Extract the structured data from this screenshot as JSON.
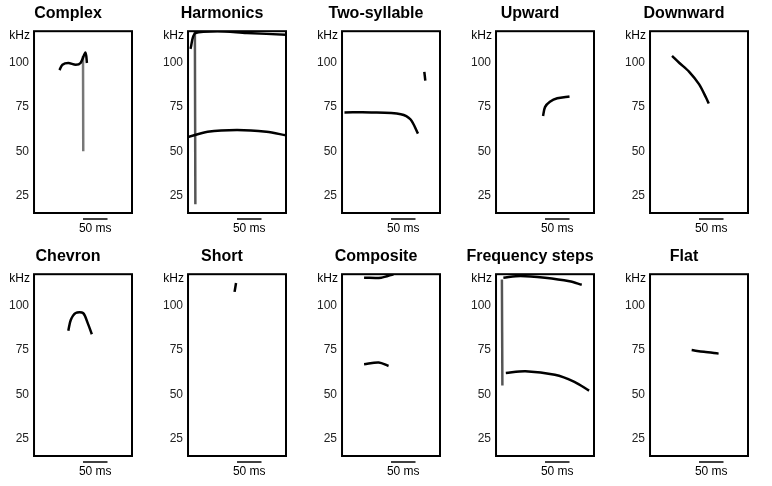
{
  "chart_data": [
    {
      "type": "line",
      "title": "Complex",
      "ylabel": "kHz",
      "ylim": [
        15,
        118
      ],
      "yticks": [
        25,
        50,
        75,
        100
      ],
      "xlim": [
        0,
        200
      ],
      "tick_labels": "y",
      "grid": false,
      "scale_bar": {
        "value": 50,
        "label": "50 ms"
      },
      "series": [
        {
          "color": "#000000",
          "x": [
            52,
            58,
            70,
            85,
            95,
            105,
            108
          ],
          "values": [
            96,
            99,
            100,
            99,
            100,
            106,
            100
          ]
        },
        {
          "color": "#777777",
          "x": [
            100,
            100.5
          ],
          "values": [
            104,
            50
          ]
        }
      ]
    },
    {
      "type": "line",
      "title": "Harmonics",
      "ylabel": "kHz",
      "ylim": [
        15,
        118
      ],
      "yticks": [
        25,
        50,
        75,
        100
      ],
      "xlim": [
        0,
        200
      ],
      "tick_labels": "y",
      "grid": false,
      "scale_bar": {
        "value": 50,
        "label": "50 ms"
      },
      "series": [
        {
          "color": "#000000",
          "x": [
            0,
            40,
            100,
            160,
            200
          ],
          "values": [
            58,
            61,
            62,
            61,
            59
          ]
        },
        {
          "color": "#000000",
          "x": [
            5,
            15,
            60,
            120,
            200
          ],
          "values": [
            108,
            117,
            118,
            117,
            116
          ]
        },
        {
          "color": "#555555",
          "x": [
            14,
            15
          ],
          "values": [
            118,
            20
          ]
        }
      ]
    },
    {
      "type": "line",
      "title": "Two-syllable",
      "ylabel": "kHz",
      "ylim": [
        15,
        118
      ],
      "yticks": [
        25,
        50,
        75,
        100
      ],
      "xlim": [
        0,
        200
      ],
      "tick_labels": "y",
      "grid": false,
      "scale_bar": {
        "value": 50,
        "label": "50 ms"
      },
      "series": [
        {
          "color": "#000000",
          "x": [
            5,
            60,
            120,
            140,
            155
          ],
          "values": [
            72,
            72,
            71,
            68,
            60
          ]
        },
        {
          "color": "#000000",
          "x": [
            168,
            170
          ],
          "values": [
            95,
            90
          ]
        }
      ]
    },
    {
      "type": "line",
      "title": "Upward",
      "ylabel": "kHz",
      "ylim": [
        15,
        118
      ],
      "yticks": [
        25,
        50,
        75,
        100
      ],
      "xlim": [
        0,
        200
      ],
      "tick_labels": "y",
      "grid": false,
      "scale_bar": {
        "value": 50,
        "label": "50 ms"
      },
      "series": [
        {
          "color": "#000000",
          "x": [
            96,
            100,
            110,
            125,
            150
          ],
          "values": [
            70,
            75,
            78,
            80,
            81
          ]
        }
      ]
    },
    {
      "type": "line",
      "title": "Downward",
      "ylabel": "kHz",
      "ylim": [
        15,
        118
      ],
      "yticks": [
        25,
        50,
        75,
        100
      ],
      "xlim": [
        0,
        200
      ],
      "tick_labels": "y",
      "grid": false,
      "scale_bar": {
        "value": 50,
        "label": "50 ms"
      },
      "series": [
        {
          "color": "#000000",
          "x": [
            45,
            60,
            80,
            100,
            115,
            120
          ],
          "values": [
            104,
            100,
            95,
            88,
            80,
            77
          ]
        }
      ]
    },
    {
      "type": "line",
      "title": "Chevron",
      "ylabel": "kHz",
      "ylim": [
        15,
        118
      ],
      "yticks": [
        25,
        50,
        75,
        100
      ],
      "xlim": [
        0,
        200
      ],
      "tick_labels": "y",
      "grid": false,
      "scale_bar": {
        "value": 50,
        "label": "50 ms"
      },
      "series": [
        {
          "color": "#000000",
          "x": [
            70,
            75,
            85,
            100,
            110,
            118
          ],
          "values": [
            86,
            92,
            96,
            96,
            90,
            84
          ]
        }
      ]
    },
    {
      "type": "line",
      "title": "Short",
      "ylabel": "kHz",
      "ylim": [
        15,
        118
      ],
      "yticks": [
        25,
        50,
        75,
        100
      ],
      "xlim": [
        0,
        200
      ],
      "tick_labels": "y",
      "grid": false,
      "scale_bar": {
        "value": 50,
        "label": "50 ms"
      },
      "series": [
        {
          "color": "#000000",
          "x": [
            95,
            98
          ],
          "values": [
            108,
            113
          ]
        }
      ]
    },
    {
      "type": "line",
      "title": "Composite",
      "ylabel": "kHz",
      "ylim": [
        15,
        118
      ],
      "yticks": [
        25,
        50,
        75,
        100
      ],
      "xlim": [
        0,
        200
      ],
      "tick_labels": "y",
      "grid": false,
      "scale_bar": {
        "value": 50,
        "label": "50 ms"
      },
      "series": [
        {
          "color": "#000000",
          "x": [
            45,
            80,
            105
          ],
          "values": [
            116,
            116,
            118
          ]
        },
        {
          "color": "#000000",
          "x": [
            45,
            75,
            95
          ],
          "values": [
            67,
            68,
            66
          ]
        }
      ]
    },
    {
      "type": "line",
      "title": "Frequency steps",
      "ylabel": "kHz",
      "ylim": [
        15,
        118
      ],
      "yticks": [
        25,
        50,
        75,
        100
      ],
      "xlim": [
        0,
        200
      ],
      "tick_labels": "y",
      "grid": false,
      "scale_bar": {
        "value": 50,
        "label": "50 ms"
      },
      "series": [
        {
          "color": "#000000",
          "x": [
            15,
            50,
            100,
            150,
            175
          ],
          "values": [
            116,
            117,
            116,
            114,
            112
          ]
        },
        {
          "color": "#000000",
          "x": [
            20,
            60,
            120,
            160,
            190
          ],
          "values": [
            62,
            63,
            61,
            57,
            52
          ]
        },
        {
          "color": "#555555",
          "x": [
            12,
            13
          ],
          "values": [
            115,
            55
          ]
        }
      ]
    },
    {
      "type": "line",
      "title": "Flat",
      "ylabel": "kHz",
      "ylim": [
        15,
        118
      ],
      "yticks": [
        25,
        50,
        75,
        100
      ],
      "xlim": [
        0,
        200
      ],
      "tick_labels": "y",
      "grid": false,
      "scale_bar": {
        "value": 50,
        "label": "50 ms"
      },
      "series": [
        {
          "color": "#000000",
          "x": [
            85,
            110,
            140
          ],
          "values": [
            75,
            74,
            73
          ]
        }
      ]
    }
  ]
}
